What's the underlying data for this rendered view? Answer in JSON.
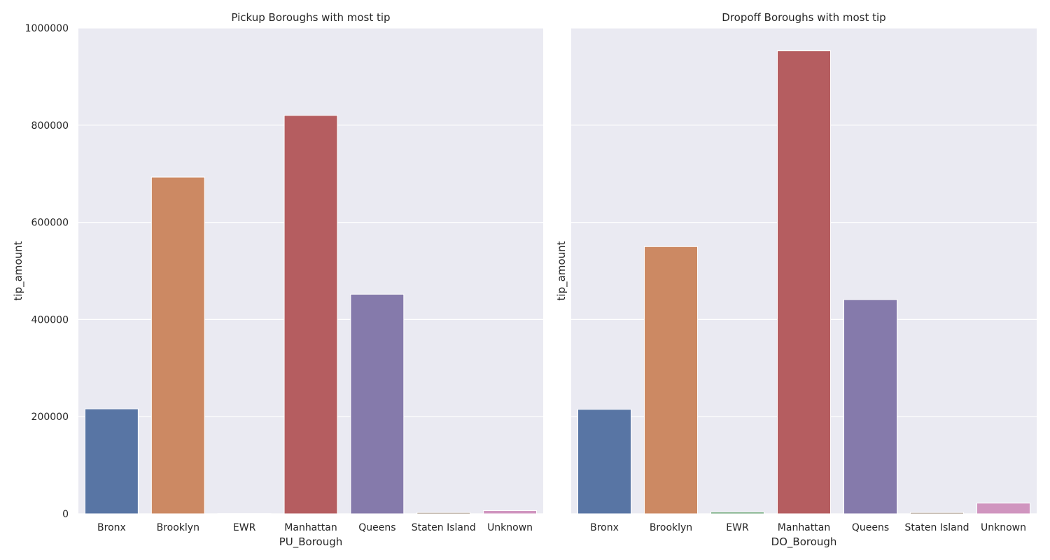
{
  "charts": [
    {
      "type": "bar",
      "title": "Pickup Boroughs with most tip",
      "xlabel": "PU_Borough",
      "ylabel": "tip_amount",
      "categories": [
        "Bronx",
        "Brooklyn",
        "EWR",
        "Manhattan",
        "Queens",
        "Staten Island",
        "Unknown"
      ],
      "values": [
        216000,
        693000,
        500,
        820000,
        452000,
        2500,
        6500
      ],
      "ylim": [
        0,
        1000000
      ],
      "yticks": [
        "0",
        "200000",
        "400000",
        "600000",
        "800000",
        "1000000"
      ],
      "colors": [
        "#5875a4",
        "#cc8963",
        "#5f9e6e",
        "#b55d60",
        "#857aab",
        "#8d7866",
        "#d095bf"
      ]
    },
    {
      "type": "bar",
      "title": "Dropoff Boroughs with most tip",
      "xlabel": "DO_Borough",
      "ylabel": "tip_amount",
      "categories": [
        "Bronx",
        "Brooklyn",
        "EWR",
        "Manhattan",
        "Queens",
        "Staten Island",
        "Unknown"
      ],
      "values": [
        215000,
        550000,
        3500,
        953000,
        441000,
        2500,
        22000
      ],
      "ylim": [
        0,
        1000000
      ],
      "colors": [
        "#5875a4",
        "#cc8963",
        "#5f9e6e",
        "#b55d60",
        "#857aab",
        "#8d7866",
        "#d095bf"
      ]
    }
  ],
  "style": {
    "plot_background": "#eaeaf2",
    "grid_color": "#ffffff",
    "text_color": "#262626"
  }
}
